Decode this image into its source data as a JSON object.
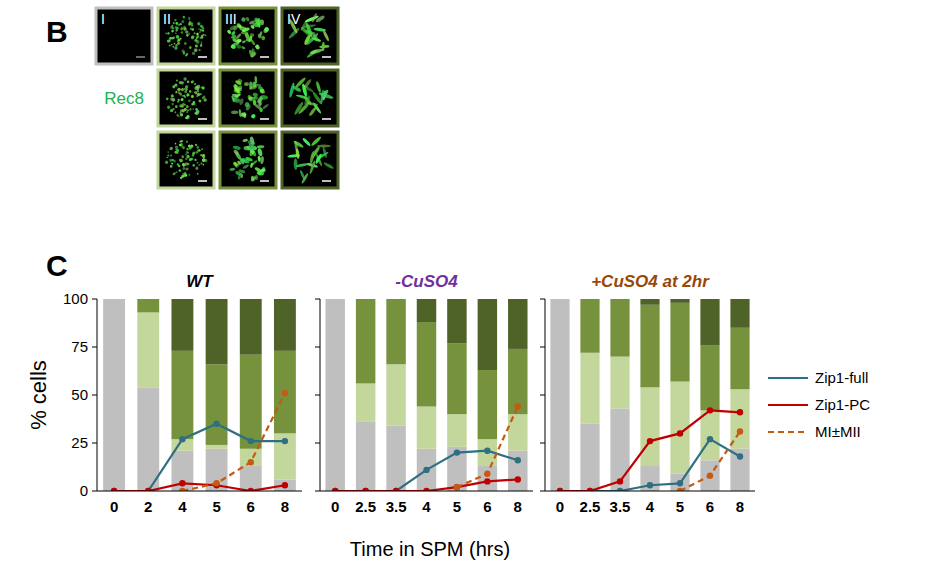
{
  "panel_b": {
    "label": "B",
    "stain": "Rec8",
    "stages": [
      "I",
      "II",
      "III",
      "IV"
    ]
  },
  "figure": {
    "panel_label": "C",
    "x_label": "Time in SPM (hrs)",
    "legend": "right"
  },
  "chart_data": [
    {
      "type": "bar",
      "stacked": true,
      "title": "WT",
      "y_label": "% cells",
      "categories": [
        "0",
        "2",
        "4",
        "5",
        "6",
        "8"
      ],
      "ylim": [
        0,
        100
      ],
      "yticks": [
        0,
        25,
        50,
        75,
        100
      ],
      "series": [
        {
          "name": "I",
          "type": "bar",
          "color": "#bfbfbf",
          "values": [
            100,
            54,
            21,
            22,
            13,
            6
          ]
        },
        {
          "name": "II",
          "type": "bar",
          "color": "#c3d69b",
          "values": [
            0,
            39,
            6,
            2,
            9,
            24
          ]
        },
        {
          "name": "III",
          "type": "bar",
          "color": "#76923c",
          "values": [
            0,
            7,
            46,
            42,
            49,
            43
          ]
        },
        {
          "name": "IV",
          "type": "bar",
          "color": "#4f6228",
          "values": [
            0,
            0,
            27,
            34,
            29,
            27
          ]
        },
        {
          "name": "Zip1-full",
          "type": "line",
          "color": "#2f6f82",
          "marker": "circle",
          "line_style": "solid",
          "values": [
            0,
            0,
            27,
            35,
            26,
            26
          ]
        },
        {
          "name": "Zip1-PC",
          "type": "line",
          "color": "#c00000",
          "marker": "circle",
          "line_style": "solid",
          "values": [
            0,
            0,
            4,
            3,
            0,
            3
          ]
        },
        {
          "name": "MI±MII",
          "type": "line",
          "color": "#c55a11",
          "marker": "circle",
          "line_style": "dashed",
          "values": [
            null,
            null,
            0,
            4,
            15,
            51
          ]
        }
      ]
    },
    {
      "type": "bar",
      "stacked": true,
      "title": "-CuSO4",
      "tick_labels": "x",
      "categories": [
        "0",
        "2.5",
        "3.5",
        "4",
        "5",
        "6",
        "8"
      ],
      "ylim": [
        0,
        100
      ],
      "yticks": [
        0,
        25,
        50,
        75,
        100
      ],
      "series": [
        {
          "name": "I",
          "type": "bar",
          "color": "#bfbfbf",
          "values": [
            100,
            36,
            34,
            22,
            23,
            13,
            21
          ]
        },
        {
          "name": "II",
          "type": "bar",
          "color": "#c3d69b",
          "values": [
            0,
            20,
            32,
            22,
            17,
            14,
            19
          ]
        },
        {
          "name": "III",
          "type": "bar",
          "color": "#76923c",
          "values": [
            0,
            44,
            34,
            44,
            37,
            36,
            34
          ]
        },
        {
          "name": "IV",
          "type": "bar",
          "color": "#4f6228",
          "values": [
            0,
            0,
            0,
            12,
            23,
            37,
            26
          ]
        },
        {
          "name": "Zip1-full",
          "type": "line",
          "color": "#2f6f82",
          "marker": "circle",
          "line_style": "solid",
          "values": [
            0,
            0,
            0,
            11,
            20,
            21,
            16
          ]
        },
        {
          "name": "Zip1-PC",
          "type": "line",
          "color": "#c00000",
          "marker": "circle",
          "line_style": "solid",
          "values": [
            0,
            0,
            0,
            0,
            2,
            5,
            6
          ]
        },
        {
          "name": "MI±MII",
          "type": "line",
          "color": "#c55a11",
          "marker": "circle",
          "line_style": "dashed",
          "values": [
            null,
            null,
            null,
            null,
            2,
            9,
            44
          ]
        }
      ]
    },
    {
      "type": "bar",
      "stacked": true,
      "title": "+CuSO4 at 2hr",
      "tick_labels": "x",
      "categories": [
        "0",
        "2.5",
        "3.5",
        "4",
        "5",
        "6",
        "8"
      ],
      "ylim": [
        0,
        100
      ],
      "yticks": [
        0,
        25,
        50,
        75,
        100
      ],
      "series": [
        {
          "name": "I",
          "type": "bar",
          "color": "#bfbfbf",
          "values": [
            100,
            35,
            43,
            13,
            9,
            16,
            22
          ]
        },
        {
          "name": "II",
          "type": "bar",
          "color": "#c3d69b",
          "values": [
            0,
            37,
            27,
            41,
            48,
            26,
            31
          ]
        },
        {
          "name": "III",
          "type": "bar",
          "color": "#76923c",
          "values": [
            0,
            28,
            30,
            43,
            41,
            34,
            32
          ]
        },
        {
          "name": "IV",
          "type": "bar",
          "color": "#4f6228",
          "values": [
            0,
            0,
            0,
            3,
            2,
            24,
            15
          ]
        },
        {
          "name": "Zip1-full",
          "type": "line",
          "color": "#2f6f82",
          "marker": "circle",
          "line_style": "solid",
          "values": [
            0,
            0,
            0,
            3,
            4,
            27,
            18
          ]
        },
        {
          "name": "Zip1-PC",
          "type": "line",
          "color": "#c00000",
          "marker": "circle",
          "line_style": "solid",
          "values": [
            0,
            0,
            5,
            26,
            30,
            42,
            41
          ]
        },
        {
          "name": "MI±MII",
          "type": "line",
          "color": "#c55a11",
          "marker": "circle",
          "line_style": "dashed",
          "values": [
            null,
            null,
            null,
            null,
            0,
            8,
            31
          ]
        }
      ]
    }
  ]
}
